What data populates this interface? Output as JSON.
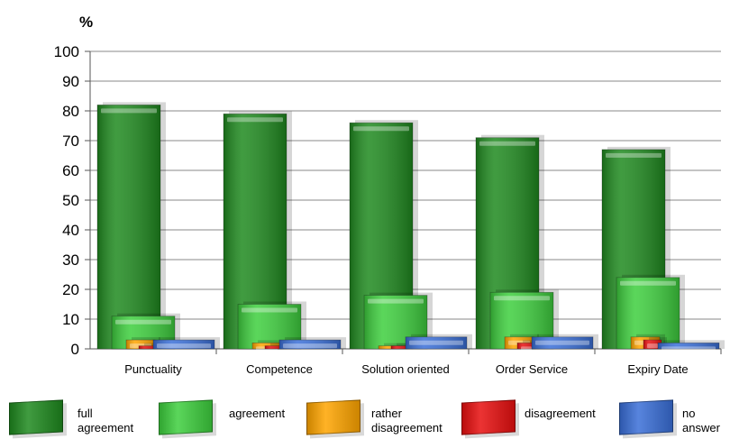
{
  "chart_data": {
    "type": "bar",
    "ylabel": "%",
    "ylim": [
      0,
      100
    ],
    "yticks": [
      0,
      10,
      20,
      30,
      40,
      50,
      60,
      70,
      80,
      90,
      100
    ],
    "grid": true,
    "legend_position": "bottom",
    "categories": [
      "Punctuality",
      "Competence",
      "Solution oriented",
      "Order Service",
      "Expiry Date"
    ],
    "series": [
      {
        "name": "full agreement",
        "color": "#1f8a1f",
        "values": [
          82,
          79,
          76,
          71,
          67
        ]
      },
      {
        "name": "agreement",
        "color": "#3ecf3e",
        "values": [
          11,
          15,
          18,
          19,
          24
        ]
      },
      {
        "name": "rather disagreement",
        "color": "#ffa500",
        "values": [
          3,
          2,
          1,
          4,
          4
        ]
      },
      {
        "name": "disagreement",
        "color": "#e81010",
        "values": [
          1,
          1,
          1,
          2,
          3
        ]
      },
      {
        "name": "no answer",
        "color": "#3a6fd8",
        "values": [
          3,
          3,
          4,
          4,
          2
        ]
      }
    ]
  },
  "legend": [
    {
      "line1": "full",
      "line2": "agreement",
      "color": "#1f8a1f"
    },
    {
      "line1": "agreement",
      "line2": "",
      "color": "#3ecf3e"
    },
    {
      "line1": "rather",
      "line2": "disagreement",
      "color": "#ffa500"
    },
    {
      "line1": "disagreement",
      "line2": "",
      "color": "#e81010"
    },
    {
      "line1": "no",
      "line2": "answer",
      "color": "#3a6fd8"
    }
  ]
}
